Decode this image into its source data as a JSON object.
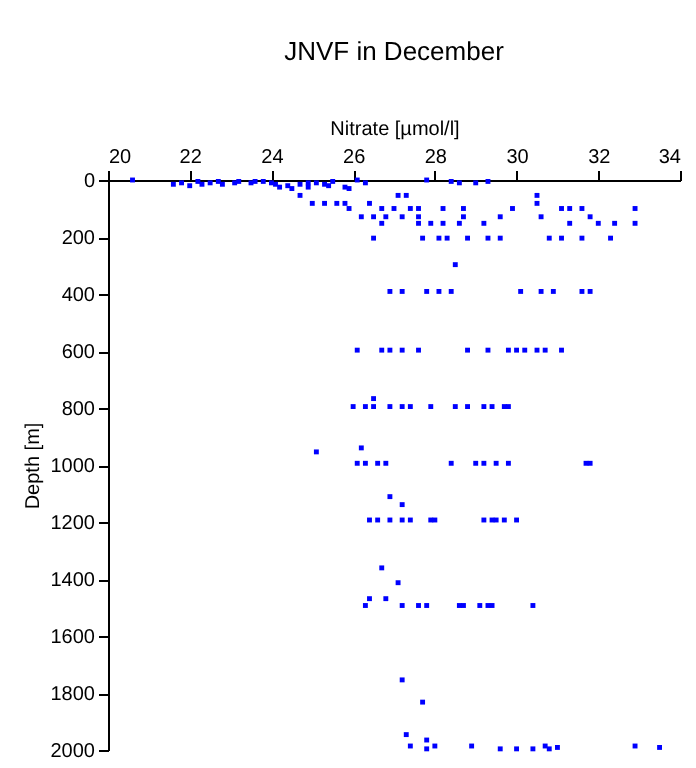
{
  "chart_data": {
    "type": "scatter",
    "title": "JNVF in December",
    "xlabel": "Nitrate [µmol/l]",
    "ylabel": "Depth [m]",
    "xlim": [
      20,
      34
    ],
    "xticks": [
      20,
      22,
      24,
      26,
      28,
      30,
      32,
      34
    ],
    "ylim": [
      2000,
      0
    ],
    "yticks": [
      0,
      200,
      400,
      600,
      800,
      1000,
      1200,
      1400,
      1600,
      1800,
      2000
    ],
    "grid": false,
    "marker": "square",
    "series": [
      {
        "color": "#0000ff",
        "x": [
          20.6,
          21.6,
          21.8,
          22.0,
          22.2,
          22.3,
          22.5,
          22.7,
          22.8,
          23.1,
          23.2,
          23.5,
          23.6,
          23.8,
          24.0,
          24.1,
          24.2,
          24.4,
          24.5,
          24.7,
          24.9,
          24.9,
          25.1,
          25.3,
          25.4,
          25.5,
          25.8,
          25.9,
          26.1,
          26.3,
          27.8,
          28.4,
          28.6,
          29.0,
          29.3,
          24.7,
          27.1,
          27.3,
          30.5,
          25.0,
          25.3,
          25.6,
          25.8,
          26.4,
          30.5,
          25.9,
          26.7,
          27.0,
          27.4,
          27.6,
          28.2,
          28.7,
          29.9,
          31.1,
          31.3,
          31.6,
          32.9,
          26.2,
          26.5,
          26.8,
          27.2,
          27.6,
          28.7,
          29.6,
          30.6,
          31.8,
          26.7,
          27.6,
          27.9,
          28.2,
          28.6,
          29.2,
          31.3,
          32.0,
          32.4,
          32.9,
          26.5,
          27.7,
          28.1,
          28.3,
          28.8,
          29.3,
          29.6,
          30.8,
          31.1,
          31.6,
          32.3,
          28.5,
          26.9,
          27.2,
          27.8,
          28.1,
          28.4,
          30.1,
          30.6,
          30.9,
          31.6,
          31.8,
          26.1,
          26.7,
          26.9,
          27.2,
          27.6,
          28.8,
          29.3,
          29.8,
          30.0,
          30.2,
          30.5,
          30.7,
          31.1,
          26.5,
          26.0,
          26.3,
          26.5,
          26.9,
          27.2,
          27.4,
          27.9,
          28.5,
          28.8,
          29.2,
          29.4,
          29.7,
          29.8,
          25.1,
          26.2,
          26.1,
          26.3,
          26.6,
          26.8,
          28.4,
          29.0,
          29.2,
          29.5,
          29.8,
          31.7,
          31.8,
          26.9,
          27.2,
          26.4,
          26.6,
          26.9,
          27.2,
          27.4,
          27.9,
          28.0,
          29.2,
          29.4,
          29.5,
          29.7,
          30.0,
          26.7,
          27.1,
          26.4,
          26.8,
          26.3,
          27.2,
          27.6,
          27.8,
          28.6,
          28.7,
          29.1,
          29.3,
          29.4,
          30.4,
          27.2,
          27.7,
          27.3,
          27.8,
          27.4,
          28.0,
          28.9,
          30.7,
          32.9,
          31.0,
          33.5,
          27.8,
          29.6,
          30.0,
          30.4,
          30.8
        ],
        "values": [
          0,
          15,
          10,
          20,
          5,
          15,
          10,
          5,
          15,
          10,
          5,
          10,
          5,
          5,
          10,
          15,
          25,
          20,
          30,
          15,
          10,
          25,
          10,
          15,
          20,
          5,
          25,
          30,
          0,
          10,
          0,
          5,
          10,
          10,
          5,
          54,
          54,
          54,
          54,
          82,
          82,
          82,
          82,
          82,
          82,
          100,
          100,
          100,
          100,
          100,
          100,
          100,
          100,
          100,
          100,
          100,
          100,
          129,
          129,
          129,
          129,
          129,
          129,
          129,
          129,
          129,
          152,
          152,
          152,
          152,
          152,
          152,
          152,
          152,
          152,
          152,
          204,
          204,
          204,
          204,
          204,
          204,
          204,
          204,
          204,
          204,
          204,
          297,
          391,
          391,
          391,
          391,
          391,
          391,
          391,
          391,
          391,
          391,
          597,
          597,
          597,
          597,
          597,
          597,
          597,
          597,
          597,
          597,
          597,
          597,
          597,
          767,
          795,
          795,
          795,
          795,
          795,
          795,
          795,
          795,
          795,
          795,
          795,
          795,
          795,
          954,
          940,
          994,
          994,
          994,
          994,
          994,
          994,
          994,
          994,
          994,
          994,
          994,
          1111,
          1139,
          1193,
          1193,
          1193,
          1193,
          1193,
          1193,
          1193,
          1193,
          1193,
          1193,
          1193,
          1193,
          1361,
          1413,
          1469,
          1469,
          1493,
          1493,
          1493,
          1493,
          1493,
          1493,
          1493,
          1493,
          1493,
          1493,
          1754,
          1832,
          1946,
          1965,
          1986,
          1986,
          1986,
          1986,
          1986,
          1991,
          1991,
          1996,
          1996,
          1996,
          1996,
          1996
        ]
      }
    ]
  }
}
